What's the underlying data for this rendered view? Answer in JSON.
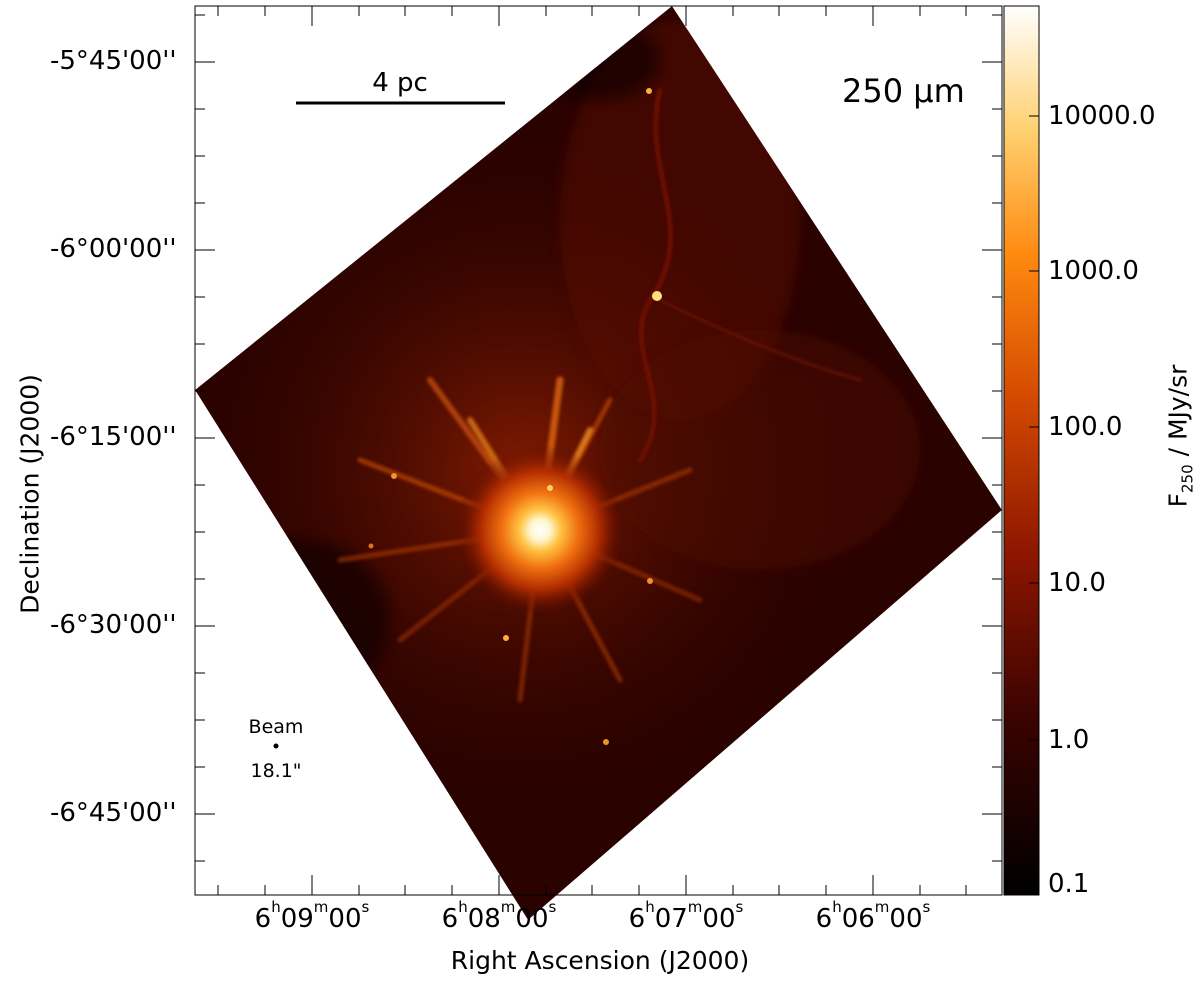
{
  "image": {
    "subject": "Herschel far-infrared map of a molecular cloud with bright central cluster and radial filaments",
    "colormap": [
      "#000000",
      "#3a0300",
      "#8c1500",
      "#d44a00",
      "#ff8a10",
      "#ffd070",
      "#ffffff"
    ]
  },
  "panel": {
    "wavelength_label": "250 µm",
    "scalebar_label": "4 pc",
    "beam_label": "Beam",
    "beam_size": "18.1\""
  },
  "axes": {
    "xlabel": "Right Ascension (J2000)",
    "ylabel": "Declination (J2000)",
    "dec_ticks": [
      "-5°45'00''",
      "-6°00'00''",
      "-6°15'00''",
      "-6°30'00''",
      "-6°45'00''"
    ],
    "ra_ticks": [
      {
        "h": "6",
        "m": "09",
        "s": "00"
      },
      {
        "h": "6",
        "m": "08",
        "s": "00"
      },
      {
        "h": "6",
        "m": "07",
        "s": "00"
      },
      {
        "h": "6",
        "m": "06",
        "s": "00"
      }
    ]
  },
  "colorbar": {
    "title_main": "F",
    "title_sub": "250",
    "title_unit": " / MJy/sr",
    "ticks": [
      "10000.0",
      "1000.0",
      "100.0",
      "10.0",
      "1.0",
      "0.1"
    ]
  }
}
